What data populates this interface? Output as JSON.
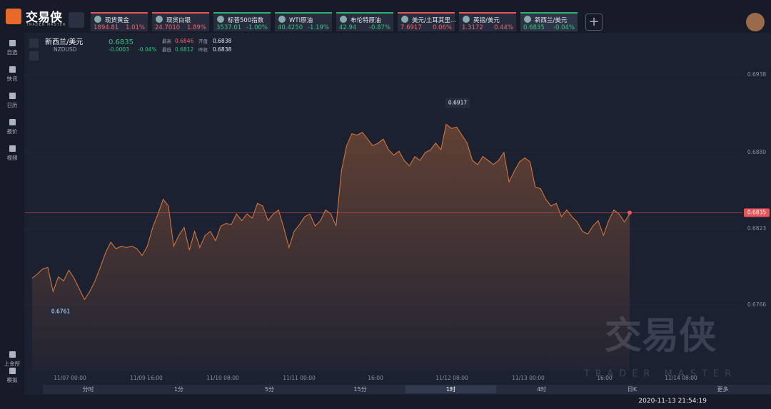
{
  "app": {
    "brand": "交易侠",
    "brand_sub": "TRADER MASTER"
  },
  "tickers": [
    {
      "name": "现货黄金",
      "price": "1894.81",
      "change": "1.01%"
    },
    {
      "name": "现货白银",
      "price": "24.7010",
      "change": "1.89%"
    },
    {
      "name": "标普500指数",
      "price": "3537.01",
      "change": "-1.00%"
    },
    {
      "name": "WTI原油",
      "price": "40.4250",
      "change": "-1.19%"
    },
    {
      "name": "布伦特原油",
      "price": "42.94",
      "change": "-0.87%"
    },
    {
      "name": "美元/土耳其里...",
      "price": "7.6917",
      "change": "0.06%"
    },
    {
      "name": "英镑/美元",
      "price": "1.3172",
      "change": "0.44%"
    },
    {
      "name": "新西兰/美元",
      "price": "0.6835",
      "change": "-0.04%"
    }
  ],
  "sidebar": [
    "自选",
    "快讯",
    "日历",
    "报价",
    "视频"
  ],
  "sidebar_bottom": [
    "上金所",
    "模拟"
  ],
  "chart_header": {
    "name": "新西兰/美元",
    "code": "NZDUSD",
    "price": "0.6835",
    "change": "-0.0003",
    "change_pct": "-0.04%",
    "high_label": "最高",
    "high": "0.6846",
    "open_label": "开盘",
    "open": "0.6838",
    "low_label": "最低",
    "low": "0.6812",
    "prev_label": "昨收",
    "prev": "0.6838"
  },
  "chart_data": {
    "type": "area",
    "color": "#e07b39",
    "x_labels": [
      "11/07 00:00",
      "11/09 16:00",
      "11/10 08:00",
      "11/11 00:00",
      "16:00",
      "11/12 08:00",
      "11/13 00:00",
      "16:00",
      "11/14 08:00"
    ],
    "values": [
      0.6786,
      0.6789,
      0.6793,
      0.6794,
      0.6776,
      0.6787,
      0.6784,
      0.6792,
      0.6786,
      0.6778,
      0.677,
      0.6776,
      0.6784,
      0.6794,
      0.6805,
      0.6813,
      0.6808,
      0.681,
      0.6809,
      0.681,
      0.6808,
      0.6803,
      0.681,
      0.6824,
      0.6834,
      0.6845,
      0.684,
      0.681,
      0.6818,
      0.6824,
      0.6807,
      0.6821,
      0.6809,
      0.6818,
      0.6821,
      0.6814,
      0.6825,
      0.6827,
      0.6826,
      0.6834,
      0.6829,
      0.6834,
      0.6831,
      0.6842,
      0.684,
      0.6829,
      0.6834,
      0.6837,
      0.6824,
      0.6809,
      0.6821,
      0.6826,
      0.6832,
      0.6834,
      0.6825,
      0.6829,
      0.6837,
      0.6834,
      0.6825,
      0.6866,
      0.6885,
      0.6894,
      0.6893,
      0.6895,
      0.689,
      0.6885,
      0.6887,
      0.689,
      0.6882,
      0.6878,
      0.6881,
      0.6874,
      0.687,
      0.6877,
      0.6874,
      0.688,
      0.6882,
      0.6887,
      0.6882,
      0.6901,
      0.6898,
      0.6899,
      0.6893,
      0.6887,
      0.6874,
      0.6871,
      0.6877,
      0.6874,
      0.6871,
      0.6874,
      0.688,
      0.6858,
      0.6866,
      0.6873,
      0.6876,
      0.6873,
      0.6854,
      0.6853,
      0.6845,
      0.684,
      0.6842,
      0.6832,
      0.6837,
      0.6832,
      0.6828,
      0.6821,
      0.6819,
      0.6825,
      0.6829,
      0.6818,
      0.6829,
      0.6837,
      0.6834,
      0.6828,
      0.6834
    ],
    "ylim": [
      0.6717,
      0.6962
    ],
    "yticks": [
      0.6938,
      {
        "value": 0.688,
        "label": "0.6880"
      },
      0.6823,
      0.6766
    ],
    "annotations": [
      0.6917,
      0.6761
    ],
    "last": 0.6835
  },
  "timeframes": [
    "分时",
    "1分",
    "5分",
    "15分",
    "1时",
    "4时",
    "日K",
    "更多"
  ],
  "status": {
    "time": "2020-11-13 21:54:19"
  }
}
